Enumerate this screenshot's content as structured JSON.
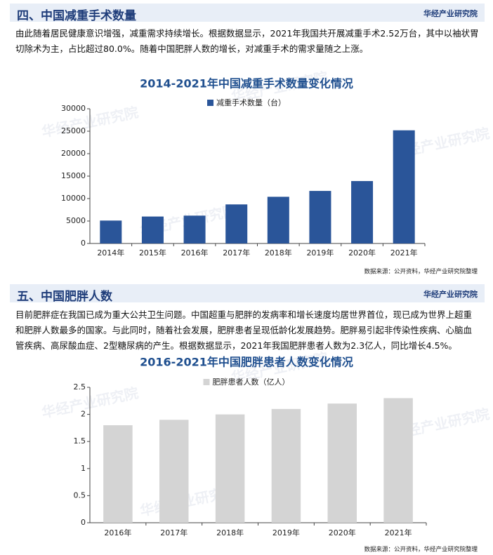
{
  "brand": "华经产业研究院",
  "sections": [
    {
      "title": "四、中国减重手术数量",
      "text": "由此随着居民健康意识增强，减重需求持续增长。根据数据显示，2021年我国共开展减重手术2.52万台，其中以袖状胃切除术为主，占比超过80.0%。随着中国肥胖人数的增长，对减重手术的需求量随之上涨。"
    },
    {
      "title": "五、中国肥胖人数",
      "text": "目前肥胖症在我国已成为重大公共卫生问题。中国超重与肥胖的发病率和增长速度均居世界首位，现已成为世界上超重和肥胖人数最多的国家。与此同时，随着社会发展，肥胖患者呈现低龄化发展趋势。肥胖易引起非传染性疾病、心脑血管疾病、高尿酸血症、2型糖尿病的产生。根据数据显示，2021年我国肥胖患者人数为2.3亿人，同比增长4.5%。"
    }
  ],
  "chart_data": [
    {
      "type": "bar",
      "title": "2014-2021年中国减重手术数量变化情况",
      "categories": [
        "2014年",
        "2015年",
        "2016年",
        "2017年",
        "2018年",
        "2019年",
        "2020年",
        "2021年"
      ],
      "series": [
        {
          "name": "减重手术数量（台）",
          "color": "#2a5599",
          "values": [
            5100,
            6000,
            6200,
            8700,
            10400,
            11700,
            13900,
            25200
          ]
        }
      ],
      "ylim": [
        0,
        30000
      ],
      "yticks": [
        0,
        5000,
        10000,
        15000,
        20000,
        25000,
        30000
      ],
      "source": "数据来源：公开资料，华经产业研究院整理"
    },
    {
      "type": "bar",
      "title": "2016-2021年中国肥胖患者人数变化情况",
      "categories": [
        "2016年",
        "2017年",
        "2018年",
        "2019年",
        "2020年",
        "2021年"
      ],
      "series": [
        {
          "name": "肥胖患者人数（亿人）",
          "color": "#d4d4d4",
          "values": [
            1.8,
            1.9,
            2.0,
            2.1,
            2.2,
            2.3
          ]
        }
      ],
      "ylim": [
        0,
        2.5
      ],
      "yticks": [
        0,
        0.5,
        1,
        1.5,
        2,
        2.5
      ],
      "source": "数据来源：公开资料，华经产业研究院整理"
    }
  ]
}
